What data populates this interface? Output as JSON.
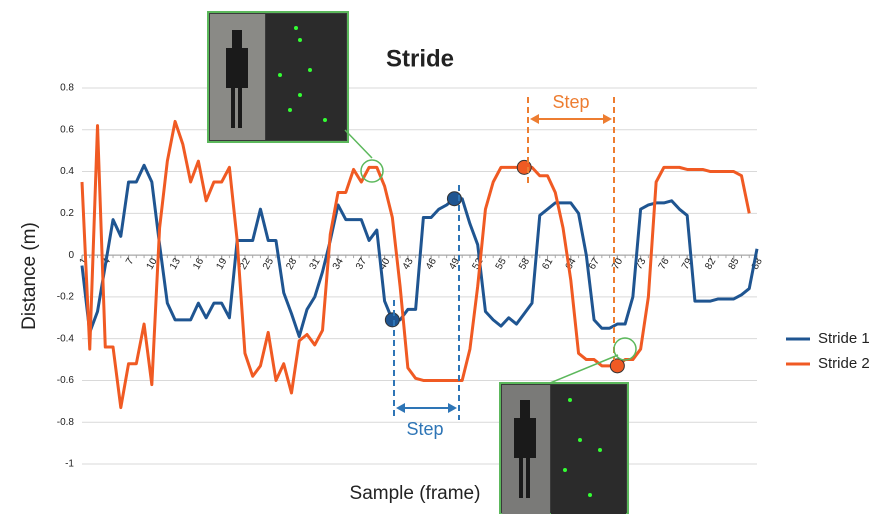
{
  "chart_data": {
    "type": "line",
    "title": "Stride",
    "x_label": "Sample (frame)",
    "y_label": "Distance (m)",
    "x": [
      1,
      2,
      3,
      4,
      5,
      6,
      7,
      8,
      9,
      10,
      11,
      12,
      13,
      14,
      15,
      16,
      17,
      18,
      19,
      20,
      21,
      22,
      23,
      24,
      25,
      26,
      27,
      28,
      29,
      30,
      31,
      32,
      33,
      34,
      35,
      36,
      37,
      38,
      39,
      40,
      41,
      42,
      43,
      44,
      45,
      46,
      47,
      48,
      49,
      50,
      51,
      52,
      53,
      54,
      55,
      56,
      57,
      58,
      59,
      60,
      61,
      62,
      63,
      64,
      65,
      66,
      67,
      68,
      69,
      70,
      71,
      72,
      73,
      74,
      75,
      76,
      77,
      78,
      79,
      80,
      81,
      82,
      83,
      84,
      85,
      86,
      87,
      88
    ],
    "series": [
      {
        "name": "Stride 1",
        "color": "#1f5591",
        "values": [
          -0.05,
          -0.37,
          -0.27,
          -0.05,
          0.17,
          0.09,
          0.35,
          0.35,
          0.43,
          0.35,
          0.05,
          -0.23,
          -0.31,
          -0.31,
          -0.31,
          -0.23,
          -0.3,
          -0.23,
          -0.23,
          -0.3,
          0.07,
          0.07,
          0.07,
          0.22,
          0.07,
          0.07,
          -0.18,
          -0.28,
          -0.39,
          -0.26,
          -0.2,
          -0.08,
          0.07,
          0.24,
          0.17,
          0.17,
          0.17,
          0.07,
          0.12,
          -0.22,
          -0.31,
          -0.31,
          -0.26,
          -0.26,
          0.18,
          0.18,
          0.22,
          0.24,
          0.27,
          0.27,
          0.15,
          0.05,
          -0.27,
          -0.31,
          -0.34,
          -0.3,
          -0.33,
          -0.28,
          -0.23,
          0.19,
          0.22,
          0.25,
          0.25,
          0.25,
          0.2,
          0.0,
          -0.31,
          -0.35,
          -0.35,
          -0.33,
          -0.33,
          -0.2,
          0.22,
          0.24,
          0.25,
          0.25,
          0.26,
          0.22,
          0.19,
          -0.22,
          -0.22,
          -0.22,
          -0.21,
          -0.21,
          -0.21,
          -0.19,
          -0.16,
          0.03
        ]
      },
      {
        "name": "Stride 2",
        "color": "#f05a23",
        "values": [
          0.35,
          -0.45,
          0.62,
          -0.44,
          -0.44,
          -0.73,
          -0.52,
          -0.52,
          -0.33,
          -0.62,
          0.13,
          0.45,
          0.64,
          0.53,
          0.35,
          0.45,
          0.26,
          0.35,
          0.35,
          0.42,
          0.07,
          -0.47,
          -0.58,
          -0.53,
          -0.37,
          -0.6,
          -0.52,
          -0.66,
          -0.41,
          -0.38,
          -0.43,
          -0.36,
          0.1,
          0.3,
          0.3,
          0.41,
          0.35,
          0.42,
          0.42,
          0.33,
          0.18,
          -0.15,
          -0.54,
          -0.59,
          -0.6,
          -0.6,
          -0.6,
          -0.6,
          -0.6,
          -0.6,
          -0.45,
          -0.15,
          0.22,
          0.35,
          0.42,
          0.42,
          0.42,
          0.42,
          0.42,
          0.38,
          0.38,
          0.3,
          0.13,
          -0.12,
          -0.47,
          -0.5,
          -0.5,
          -0.53,
          -0.53,
          -0.53,
          -0.5,
          -0.5,
          -0.45,
          -0.2,
          0.35,
          0.42,
          0.42,
          0.42,
          0.41,
          0.41,
          0.41,
          0.4,
          0.4,
          0.4,
          0.4,
          0.38,
          0.2,
          null
        ]
      }
    ],
    "xlim": [
      1,
      88
    ],
    "xticks": [
      1,
      4,
      7,
      10,
      13,
      16,
      19,
      22,
      25,
      28,
      31,
      34,
      37,
      40,
      43,
      46,
      49,
      52,
      55,
      58,
      61,
      64,
      67,
      70,
      73,
      76,
      79,
      82,
      85,
      88
    ],
    "ylim": [
      -1,
      0.8
    ],
    "yticks": [
      -1,
      -0.8,
      -0.6,
      -0.4,
      -0.2,
      0,
      0.2,
      0.4,
      0.6,
      0.8
    ],
    "grid": true,
    "legend": "right",
    "annotations": [
      "Step",
      "Step"
    ]
  }
}
